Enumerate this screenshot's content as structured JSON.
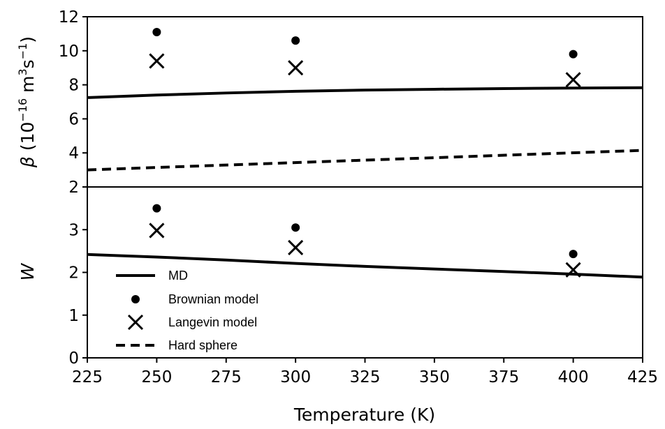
{
  "chart_data": [
    {
      "type": "line",
      "panel": "top",
      "xlabel": "",
      "ylabel": "β (10⁻¹⁶ m³s⁻¹)",
      "ylabel_parts": {
        "symbol": "β",
        "open": " (10",
        "exp1": "−16",
        "unit1": " m",
        "exp2": "3",
        "unit2": "s",
        "exp3": "−1",
        "close": ")"
      },
      "xlim": [
        225,
        425
      ],
      "ylim": [
        2,
        12
      ],
      "yticks": [
        2,
        4,
        6,
        8,
        10,
        12
      ],
      "series": [
        {
          "name": "MD",
          "style": "solid-line",
          "x": [
            225,
            250,
            275,
            300,
            325,
            350,
            375,
            400,
            425
          ],
          "y": [
            7.25,
            7.4,
            7.52,
            7.62,
            7.69,
            7.74,
            7.78,
            7.81,
            7.83
          ]
        },
        {
          "name": "Brownian model",
          "style": "dot",
          "x": [
            250,
            300,
            400
          ],
          "y": [
            11.1,
            10.6,
            9.8
          ]
        },
        {
          "name": "Langevin model",
          "style": "cross",
          "x": [
            250,
            300,
            400
          ],
          "y": [
            9.4,
            9.0,
            8.3
          ]
        },
        {
          "name": "Hard sphere",
          "style": "dashed-line",
          "x": [
            225,
            425
          ],
          "y": [
            3.0,
            4.15
          ]
        }
      ]
    },
    {
      "type": "line",
      "panel": "bottom",
      "xlabel": "Temperature (K)",
      "ylabel": "W",
      "xlim": [
        225,
        425
      ],
      "ylim": [
        0,
        4
      ],
      "xticks": [
        225,
        250,
        275,
        300,
        325,
        350,
        375,
        400,
        425
      ],
      "yticks": [
        0,
        1,
        2,
        3
      ],
      "series": [
        {
          "name": "MD",
          "style": "solid-line",
          "x": [
            225,
            250,
            275,
            300,
            325,
            350,
            375,
            400,
            425
          ],
          "y": [
            2.42,
            2.36,
            2.29,
            2.21,
            2.14,
            2.08,
            2.02,
            1.96,
            1.89
          ]
        },
        {
          "name": "Brownian model",
          "style": "dot",
          "x": [
            250,
            300,
            400
          ],
          "y": [
            3.5,
            3.05,
            2.43
          ]
        },
        {
          "name": "Langevin model",
          "style": "cross",
          "x": [
            250,
            300,
            400
          ],
          "y": [
            2.98,
            2.58,
            2.06
          ]
        },
        {
          "name": "Hard sphere",
          "style": "dashed-line",
          "x": [],
          "y": []
        }
      ]
    }
  ],
  "legend": {
    "placement": "lower-left of bottom panel",
    "entries": [
      "MD",
      "Brownian model",
      "Langevin model",
      "Hard sphere"
    ]
  }
}
